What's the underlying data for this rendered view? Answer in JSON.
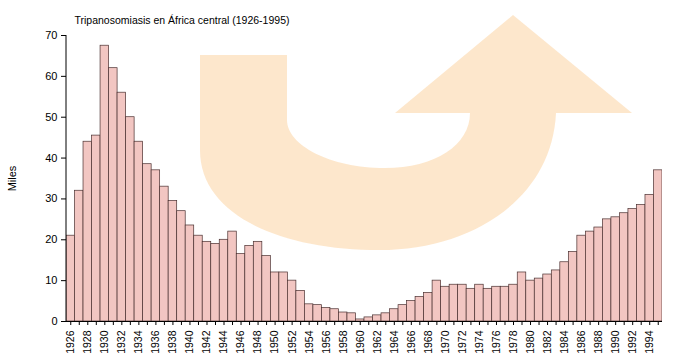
{
  "chart_data": {
    "type": "bar",
    "title": "Tripanosomiasis en África central (1926-1995)",
    "y_label": "Miles",
    "categories": [
      "1926",
      null,
      "1928",
      null,
      "1930",
      null,
      "1932",
      null,
      "1934",
      null,
      "1936",
      null,
      "1938",
      null,
      "1940",
      null,
      "1942",
      null,
      "1944",
      null,
      "1946",
      null,
      "1948",
      null,
      "1950",
      null,
      "1952",
      null,
      "1954",
      null,
      "1956",
      null,
      "1958",
      null,
      "1960",
      null,
      "1962",
      null,
      "1964",
      null,
      "1966",
      null,
      "1968",
      null,
      "1970",
      null,
      "1972",
      null,
      "1974",
      null,
      "1976",
      null,
      "1978",
      null,
      "1980",
      null,
      "1982",
      null,
      "1984",
      null,
      "1986",
      null,
      "1988",
      null,
      "1990",
      null,
      "1992",
      null,
      "1994",
      null
    ],
    "values": [
      21,
      32,
      44,
      45.5,
      67.5,
      62,
      56,
      50,
      44,
      38.5,
      37,
      33,
      29.5,
      27,
      23.5,
      21,
      19.5,
      19,
      20,
      22,
      16.5,
      18.5,
      19.5,
      16,
      12,
      12,
      10,
      7.5,
      4.2,
      4,
      3.3,
      3,
      2.2,
      2,
      0.5,
      1,
      1.5,
      2,
      3,
      4,
      5,
      6,
      7,
      10,
      8.5,
      9,
      9,
      8,
      9,
      8,
      8.5,
      8.5,
      9,
      12,
      10,
      10.5,
      11.5,
      12.5,
      14.5,
      17,
      21,
      22,
      23,
      25,
      25.5,
      26.5,
      27.5,
      28.5,
      31,
      37
    ],
    "color": "#f2c6c2",
    "ylim": [
      0,
      70
    ],
    "yticks": [
      0,
      10,
      20,
      30,
      40,
      50,
      60,
      70
    ],
    "grid": false
  }
}
